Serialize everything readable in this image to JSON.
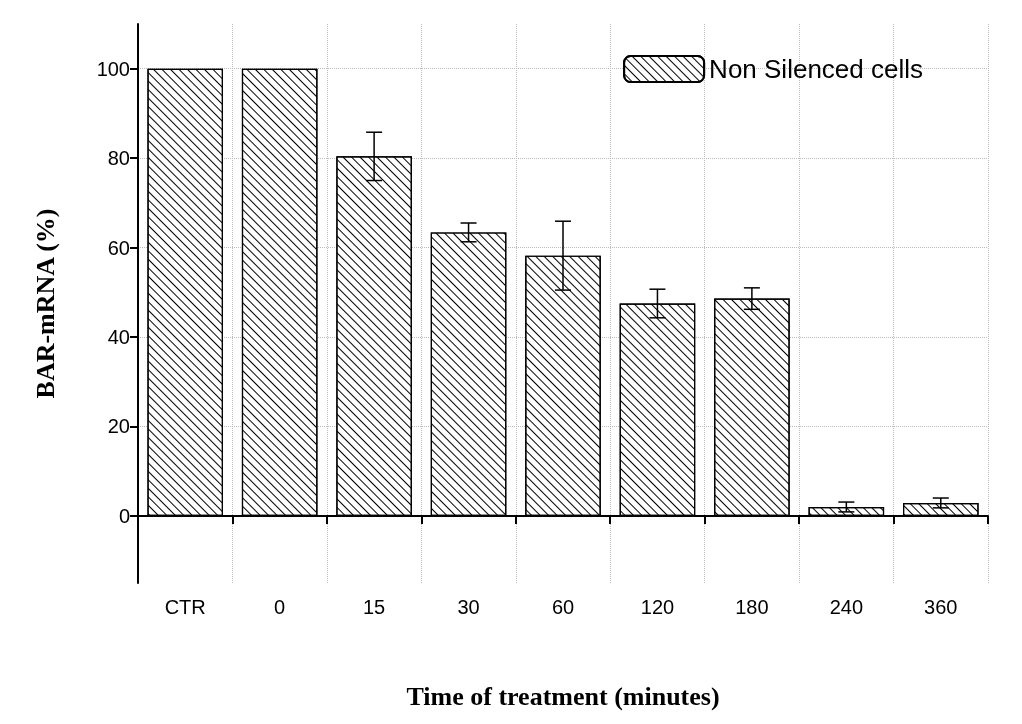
{
  "chart_data": {
    "type": "bar",
    "xlabel": "Time of treatment (minutes)",
    "ylabel": "BAR-mRNA (%)",
    "categories": [
      "CTR",
      "0",
      "15",
      "30",
      "60",
      "120",
      "180",
      "240",
      "360"
    ],
    "series": [
      {
        "name": "Non Silenced cells",
        "color": "#ffffff",
        "values": [
          100,
          100,
          80.4,
          63.4,
          58.2,
          47.5,
          48.6,
          2.0,
          2.9
        ],
        "errors": [
          null,
          null,
          5.4,
          2.1,
          7.7,
          3.2,
          2.4,
          1.1,
          1.1
        ]
      }
    ],
    "ylim": [
      -15,
      110
    ],
    "yticks": [
      0,
      20,
      40,
      60,
      80,
      100
    ],
    "grid": true,
    "legend": "top right"
  }
}
